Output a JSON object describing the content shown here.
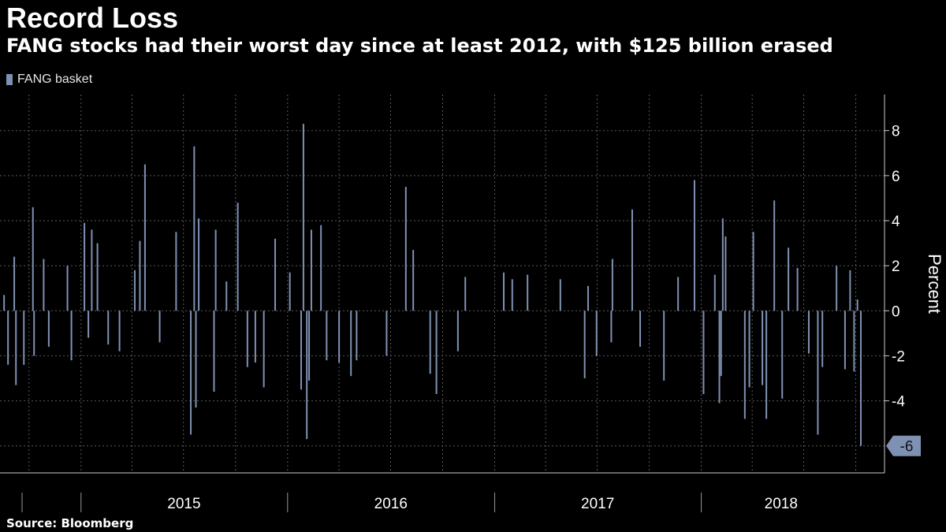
{
  "chart_data": {
    "type": "bar",
    "title": "Record Loss",
    "subtitle": "FANG stocks had their worst day since at least 2012, with $125 billion erased",
    "ylabel": "Percent",
    "ylim": [
      -7.2,
      9.6
    ],
    "yticks": [
      -6,
      -4,
      -2,
      0,
      2,
      4,
      6,
      8
    ],
    "y_tick_labels": [
      "-4",
      "-2",
      "0",
      "2",
      "4",
      "6",
      "8"
    ],
    "x_range": [
      "2014-08-15",
      "2018-10-10"
    ],
    "year_labels": [
      {
        "label": "2015",
        "start": "2015-01-01",
        "end": "2015-12-31"
      },
      {
        "label": "2016",
        "start": "2016-01-01",
        "end": "2016-12-31"
      },
      {
        "label": "2017",
        "start": "2017-01-01",
        "end": "2017-12-31"
      },
      {
        "label": "2018",
        "start": "2018-01-01",
        "end": "2018-10-10"
      }
    ],
    "grid": true,
    "legend": "top-left",
    "series": [
      {
        "name": "FANG basket",
        "color": "#7f91b3",
        "last_value_label": "-6",
        "last_value": -6.0,
        "points": [
          [
            "2014-08-18",
            0.7
          ],
          [
            "2014-08-25",
            -2.4
          ],
          [
            "2014-09-05",
            2.4
          ],
          [
            "2014-09-08",
            -3.3
          ],
          [
            "2014-09-22",
            -2.4
          ],
          [
            "2014-10-08",
            4.6
          ],
          [
            "2014-10-10",
            -2.0
          ],
          [
            "2014-10-27",
            2.3
          ],
          [
            "2014-11-05",
            -1.6
          ],
          [
            "2014-12-08",
            2.0
          ],
          [
            "2014-12-15",
            -2.2
          ],
          [
            "2015-01-07",
            3.9
          ],
          [
            "2015-01-14",
            -1.2
          ],
          [
            "2015-01-20",
            3.6
          ],
          [
            "2015-01-30",
            3.0
          ],
          [
            "2015-02-18",
            -1.5
          ],
          [
            "2015-03-10",
            -1.8
          ],
          [
            "2015-04-06",
            1.8
          ],
          [
            "2015-04-15",
            3.1
          ],
          [
            "2015-04-24",
            6.5
          ],
          [
            "2015-05-20",
            -1.4
          ],
          [
            "2015-06-18",
            3.5
          ],
          [
            "2015-07-14",
            -5.5
          ],
          [
            "2015-07-20",
            7.3
          ],
          [
            "2015-07-23",
            -4.3
          ],
          [
            "2015-07-28",
            4.1
          ],
          [
            "2015-08-24",
            -3.6
          ],
          [
            "2015-08-27",
            3.6
          ],
          [
            "2015-09-15",
            1.3
          ],
          [
            "2015-10-05",
            4.8
          ],
          [
            "2015-10-22",
            -2.5
          ],
          [
            "2015-11-05",
            -2.3
          ],
          [
            "2015-11-20",
            -3.4
          ],
          [
            "2015-12-10",
            3.2
          ],
          [
            "2016-01-05",
            1.7
          ],
          [
            "2016-01-25",
            -3.5
          ],
          [
            "2016-01-29",
            8.3
          ],
          [
            "2016-02-04",
            -5.7
          ],
          [
            "2016-02-08",
            -3.1
          ],
          [
            "2016-02-12",
            3.6
          ],
          [
            "2016-02-29",
            3.8
          ],
          [
            "2016-03-10",
            -2.2
          ],
          [
            "2016-04-01",
            -2.3
          ],
          [
            "2016-04-22",
            -2.9
          ],
          [
            "2016-05-02",
            -2.2
          ],
          [
            "2016-06-24",
            -2.0
          ],
          [
            "2016-07-28",
            5.5
          ],
          [
            "2016-08-10",
            2.7
          ],
          [
            "2016-09-09",
            -2.8
          ],
          [
            "2016-09-20",
            -3.7
          ],
          [
            "2016-10-28",
            -1.8
          ],
          [
            "2016-11-10",
            1.5
          ],
          [
            "2017-01-17",
            1.7
          ],
          [
            "2017-02-01",
            1.4
          ],
          [
            "2017-02-28",
            1.6
          ],
          [
            "2017-04-27",
            1.4
          ],
          [
            "2017-06-09",
            -3.0
          ],
          [
            "2017-06-15",
            1.1
          ],
          [
            "2017-06-30",
            -2.0
          ],
          [
            "2017-07-26",
            -1.4
          ],
          [
            "2017-07-28",
            2.3
          ],
          [
            "2017-09-01",
            4.5
          ],
          [
            "2017-09-15",
            -1.6
          ],
          [
            "2017-10-27",
            -3.1
          ],
          [
            "2017-11-21",
            1.5
          ],
          [
            "2017-12-20",
            5.8
          ],
          [
            "2018-01-05",
            -3.7
          ],
          [
            "2018-01-25",
            1.6
          ],
          [
            "2018-02-02",
            -4.1
          ],
          [
            "2018-02-05",
            -2.9
          ],
          [
            "2018-02-08",
            4.1
          ],
          [
            "2018-02-13",
            3.3
          ],
          [
            "2018-03-19",
            -4.8
          ],
          [
            "2018-03-27",
            -3.4
          ],
          [
            "2018-04-03",
            3.5
          ],
          [
            "2018-04-19",
            -3.3
          ],
          [
            "2018-04-26",
            -4.8
          ],
          [
            "2018-05-10",
            4.9
          ],
          [
            "2018-05-24",
            -3.9
          ],
          [
            "2018-06-04",
            2.8
          ],
          [
            "2018-06-20",
            1.9
          ],
          [
            "2018-07-10",
            -1.9
          ],
          [
            "2018-07-26",
            -5.5
          ],
          [
            "2018-08-03",
            -2.5
          ],
          [
            "2018-08-28",
            2.0
          ],
          [
            "2018-09-12",
            -2.6
          ],
          [
            "2018-09-21",
            1.8
          ],
          [
            "2018-09-28",
            -2.7
          ],
          [
            "2018-10-04",
            0.5
          ],
          [
            "2018-10-10",
            -6.0
          ]
        ]
      }
    ]
  },
  "source": "Source: Bloomberg",
  "colors": {
    "background": "#000000",
    "bar": "#7f91b3",
    "grid": "#5a5a5a",
    "text": "#ffffff"
  }
}
